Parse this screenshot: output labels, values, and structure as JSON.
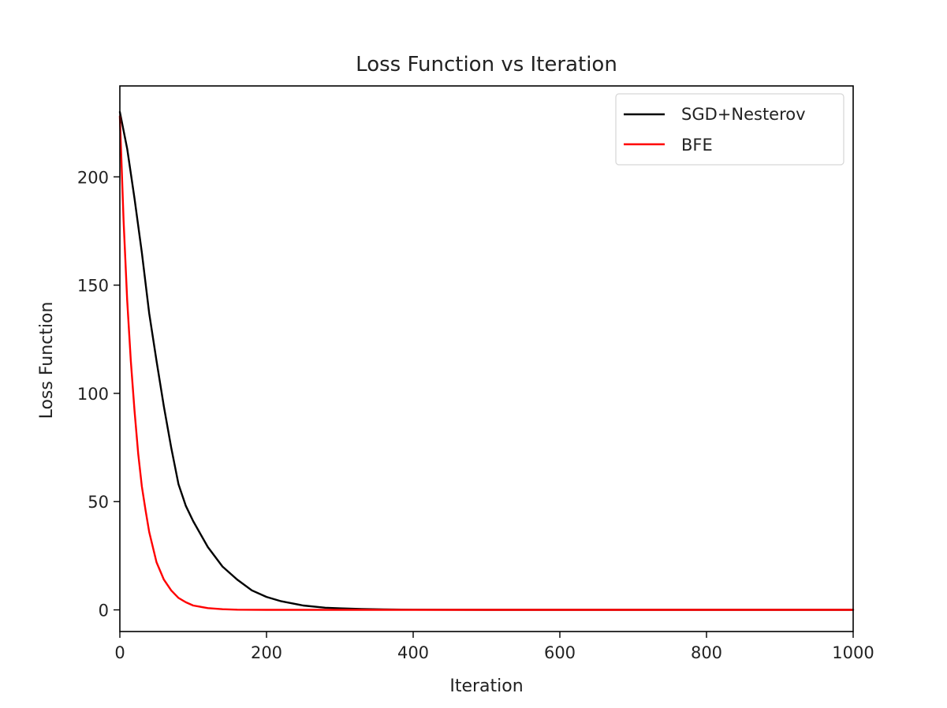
{
  "chart_data": {
    "type": "line",
    "title": "Loss Function vs Iteration",
    "xlabel": "Iteration",
    "ylabel": "Loss Function",
    "xlim": [
      0,
      1000
    ],
    "ylim": [
      -10,
      242
    ],
    "xticks": [
      0,
      200,
      400,
      600,
      800,
      1000
    ],
    "yticks": [
      0,
      50,
      100,
      150,
      200
    ],
    "xtick_labels": [
      "0",
      "200",
      "400",
      "600",
      "800",
      "1000"
    ],
    "ytick_labels": [
      "0",
      "50",
      "100",
      "150",
      "200"
    ],
    "legend_position": "top-right",
    "grid": false,
    "series": [
      {
        "name": "SGD+Nesterov",
        "color": "#000000",
        "x": [
          0,
          10,
          20,
          30,
          40,
          50,
          60,
          70,
          80,
          90,
          100,
          120,
          140,
          160,
          180,
          200,
          220,
          250,
          280,
          300,
          330,
          360,
          400,
          450,
          500,
          600,
          700,
          800,
          900,
          1000
        ],
        "y": [
          230,
          213,
          190,
          165,
          137,
          115,
          94,
          75,
          58,
          48,
          41,
          29,
          20,
          14,
          9,
          6,
          4,
          2,
          1,
          0.7,
          0.4,
          0.2,
          0.1,
          0.05,
          0,
          0,
          0,
          0,
          0,
          0
        ]
      },
      {
        "name": "BFE",
        "color": "#ff0000",
        "x": [
          0,
          5,
          10,
          15,
          20,
          25,
          30,
          35,
          40,
          50,
          60,
          70,
          80,
          90,
          100,
          120,
          140,
          160,
          200,
          300,
          400,
          500,
          600,
          700,
          800,
          900,
          1000
        ],
        "y": [
          228,
          180,
          143,
          115,
          92,
          72,
          57,
          46,
          36,
          22,
          14,
          9,
          5.5,
          3.5,
          2,
          0.8,
          0.3,
          0.1,
          0,
          0,
          0,
          0,
          0,
          0,
          0,
          0,
          0
        ]
      }
    ]
  }
}
